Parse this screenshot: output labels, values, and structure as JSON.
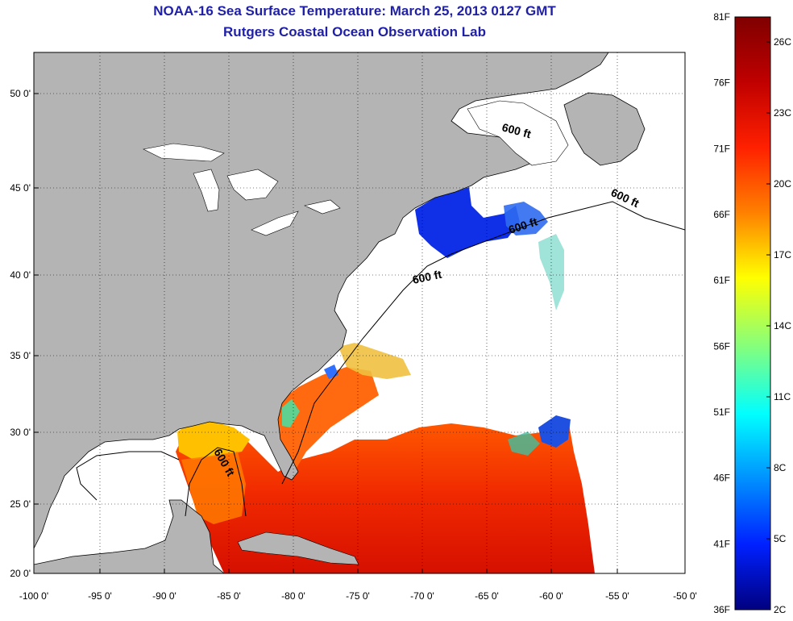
{
  "title": "NOAA-16 Sea Surface Temperature:  March 25, 2013 0127 GMT",
  "subtitle": "Rutgers Coastal Ocean Observation Lab",
  "axes": {
    "x_ticks": [
      "-100 0'",
      "-95 0'",
      "-90 0'",
      "-85 0'",
      "-80 0'",
      "-75 0'",
      "-70 0'",
      "-65 0'",
      "-60 0'",
      "-55 0'",
      "-50 0'"
    ],
    "y_ticks": [
      "50 0'",
      "45 0'",
      "40 0'",
      "35 0'",
      "30 0'",
      "25 0'",
      "20 0'"
    ]
  },
  "isobath_labels": [
    "600 ft",
    "600 ft",
    "600 ft",
    "600 ft",
    "600 ft"
  ],
  "colorbar": {
    "fahrenheit_labels": [
      "81F",
      "76F",
      "71F",
      "66F",
      "61F",
      "56F",
      "51F",
      "46F",
      "41F",
      "36F"
    ],
    "celsius_labels": [
      "26C",
      "23C",
      "20C",
      "17C",
      "14C",
      "11C",
      "8C",
      "5C",
      "2C"
    ],
    "colors": [
      "#7f0000",
      "#d00000",
      "#ff3000",
      "#ff9000",
      "#ffff00",
      "#90ff70",
      "#00ffff",
      "#0090ff",
      "#0020ff",
      "#00007f"
    ]
  },
  "colors": {
    "land": "#b4b4b4",
    "ocean_no_data": "#ffffff",
    "title": "#1f1fa8"
  }
}
